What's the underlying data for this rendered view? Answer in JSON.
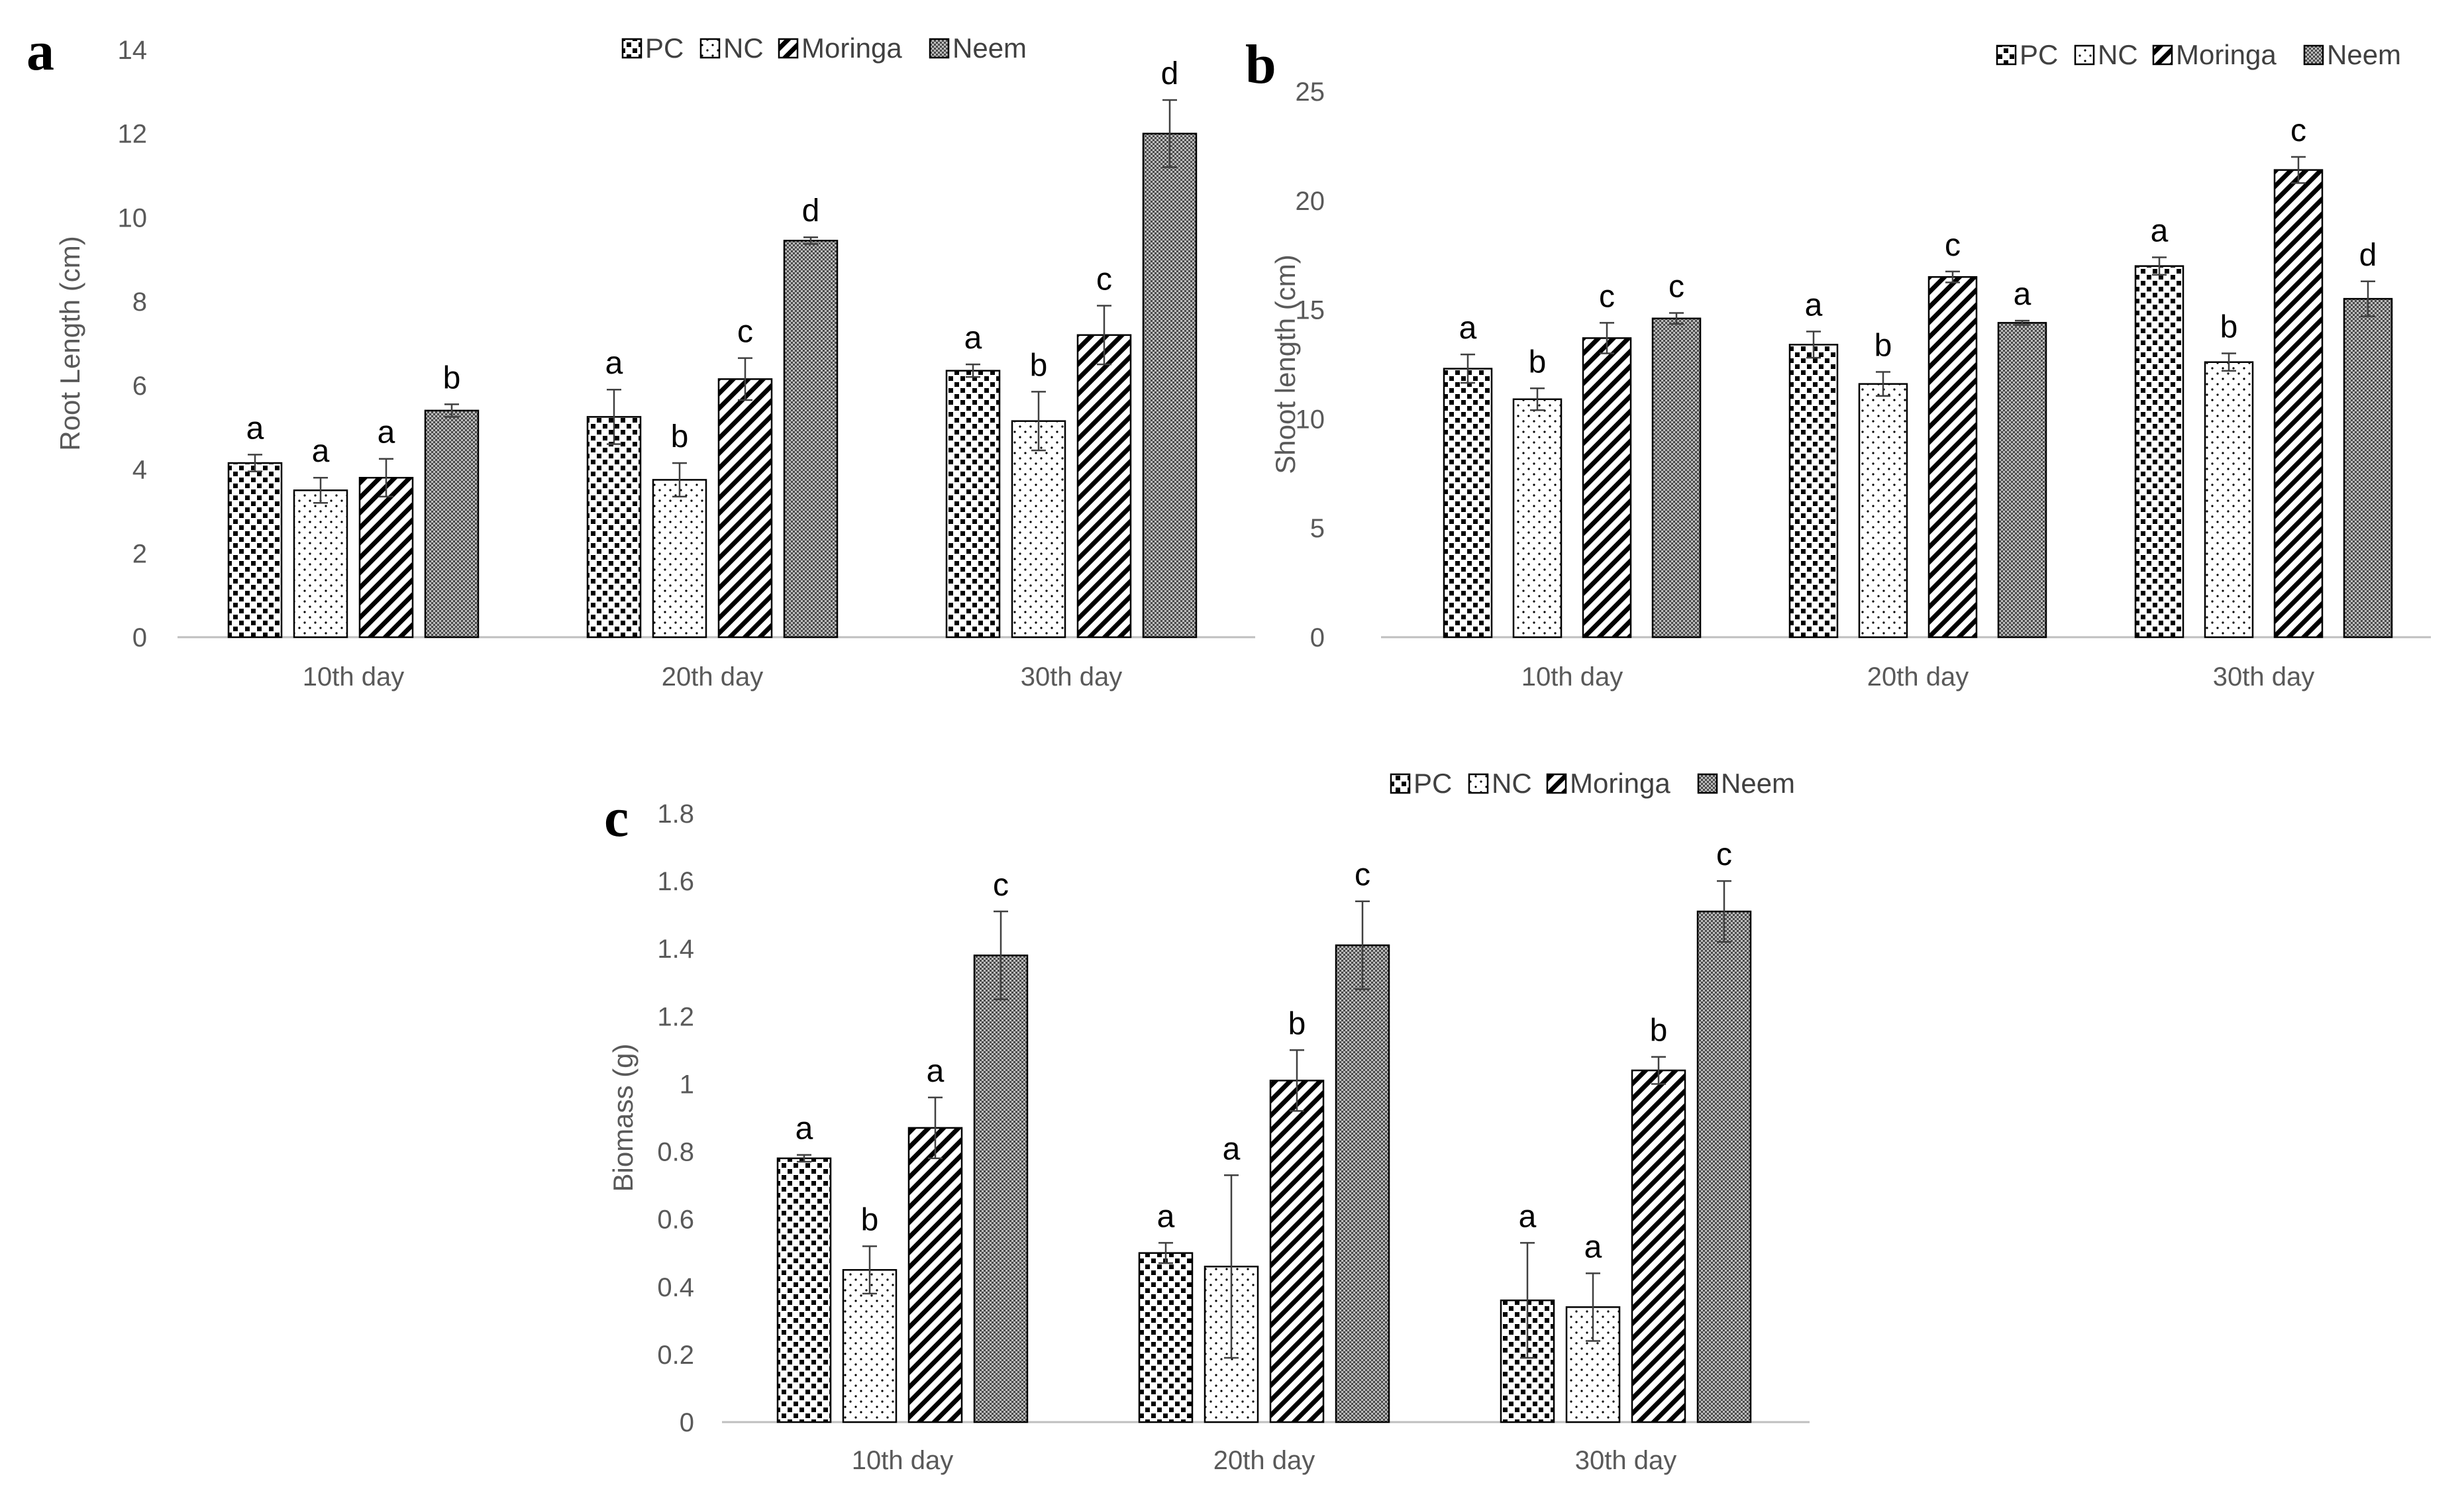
{
  "figure_title": "",
  "colors": {
    "axis": "#bfbfbf",
    "text": "#595959",
    "bar_edge": "#000000",
    "error_bar": "#404040"
  },
  "chart_data": [
    {
      "panel": "a",
      "type": "bar",
      "title": "",
      "xlabel": "",
      "ylabel": "Root Length (cm)",
      "ylim": [
        0,
        14
      ],
      "yticks": [
        0,
        2,
        4,
        6,
        8,
        10,
        12,
        14
      ],
      "ytick_labels": [
        "0",
        "2",
        "4",
        "6",
        "8",
        "10",
        "12",
        "14"
      ],
      "grid": false,
      "legend_position": "top-center",
      "categories": [
        "10th day",
        "20th day",
        "30th day"
      ],
      "series": [
        {
          "name": "PC",
          "pattern": "dots-large",
          "values": [
            4.15,
            5.25,
            6.35
          ],
          "errors": [
            0.2,
            0.65,
            0.15
          ],
          "labels": [
            "a",
            "a",
            "a"
          ]
        },
        {
          "name": "NC",
          "pattern": "dots-small",
          "values": [
            3.5,
            3.75,
            5.15
          ],
          "errors": [
            0.3,
            0.4,
            0.7
          ],
          "labels": [
            "a",
            "b",
            "b"
          ]
        },
        {
          "name": "Moringa",
          "pattern": "diagonal",
          "values": [
            3.8,
            6.15,
            7.2
          ],
          "errors": [
            0.45,
            0.5,
            0.7
          ],
          "labels": [
            "a",
            "c",
            "c"
          ]
        },
        {
          "name": "Neem",
          "pattern": "crosshatch",
          "values": [
            5.4,
            9.45,
            12.0
          ],
          "errors": [
            0.15,
            0.08,
            0.8
          ],
          "labels": [
            "b",
            "d",
            "d"
          ]
        }
      ]
    },
    {
      "panel": "b",
      "type": "bar",
      "title": "",
      "xlabel": "",
      "ylabel": "Shoot length (cm)",
      "ylim": [
        0,
        25
      ],
      "yticks": [
        0,
        5,
        10,
        15,
        20,
        25
      ],
      "ytick_labels": [
        "0",
        "5",
        "10",
        "15",
        "20",
        "25"
      ],
      "grid": false,
      "legend_position": "top-right",
      "categories": [
        "10th day",
        "20th day",
        "30th day"
      ],
      "series": [
        {
          "name": "PC",
          "pattern": "dots-large",
          "values": [
            12.3,
            13.4,
            17.0
          ],
          "errors": [
            0.65,
            0.6,
            0.4
          ],
          "labels": [
            "a",
            "a",
            "a"
          ]
        },
        {
          "name": "NC",
          "pattern": "dots-small",
          "values": [
            10.9,
            11.6,
            12.6
          ],
          "errors": [
            0.5,
            0.55,
            0.4
          ],
          "labels": [
            "b",
            "b",
            "b"
          ]
        },
        {
          "name": "Moringa",
          "pattern": "diagonal",
          "values": [
            13.7,
            16.5,
            21.4
          ],
          "errors": [
            0.7,
            0.25,
            0.6
          ],
          "labels": [
            "c",
            "c",
            "c"
          ]
        },
        {
          "name": "Neem",
          "pattern": "crosshatch",
          "values": [
            14.6,
            14.4,
            15.5
          ],
          "errors": [
            0.25,
            0.1,
            0.8
          ],
          "labels": [
            "c",
            "a",
            "d"
          ]
        }
      ]
    },
    {
      "panel": "c",
      "type": "bar",
      "title": "",
      "xlabel": "",
      "ylabel": "Biomass (g)",
      "ylim": [
        0,
        1.8
      ],
      "yticks": [
        0,
        0.2,
        0.4,
        0.6,
        0.8,
        1.0,
        1.2,
        1.4,
        1.6,
        1.8
      ],
      "ytick_labels": [
        "0",
        "0.2",
        "0.4",
        "0.6",
        "0.8",
        "1",
        "1.2",
        "1.4",
        "1.6",
        "1.8"
      ],
      "grid": false,
      "legend_position": "top-right",
      "categories": [
        "10th day",
        "20th day",
        "30th day"
      ],
      "series": [
        {
          "name": "PC",
          "pattern": "dots-large",
          "values": [
            0.78,
            0.5,
            0.36
          ],
          "errors": [
            0.01,
            0.03,
            0.17
          ],
          "labels": [
            "a",
            "a",
            "a"
          ]
        },
        {
          "name": "NC",
          "pattern": "dots-small",
          "values": [
            0.45,
            0.46,
            0.34
          ],
          "errors": [
            0.07,
            0.27,
            0.1
          ],
          "labels": [
            "b",
            "a",
            "a"
          ]
        },
        {
          "name": "Moringa",
          "pattern": "diagonal",
          "values": [
            0.87,
            1.01,
            1.04
          ],
          "errors": [
            0.09,
            0.09,
            0.04
          ],
          "labels": [
            "a",
            "b",
            "b"
          ]
        },
        {
          "name": "Neem",
          "pattern": "crosshatch",
          "values": [
            1.38,
            1.41,
            1.51
          ],
          "errors": [
            0.13,
            0.13,
            0.09
          ],
          "labels": [
            "c",
            "c",
            "c"
          ]
        }
      ]
    }
  ]
}
